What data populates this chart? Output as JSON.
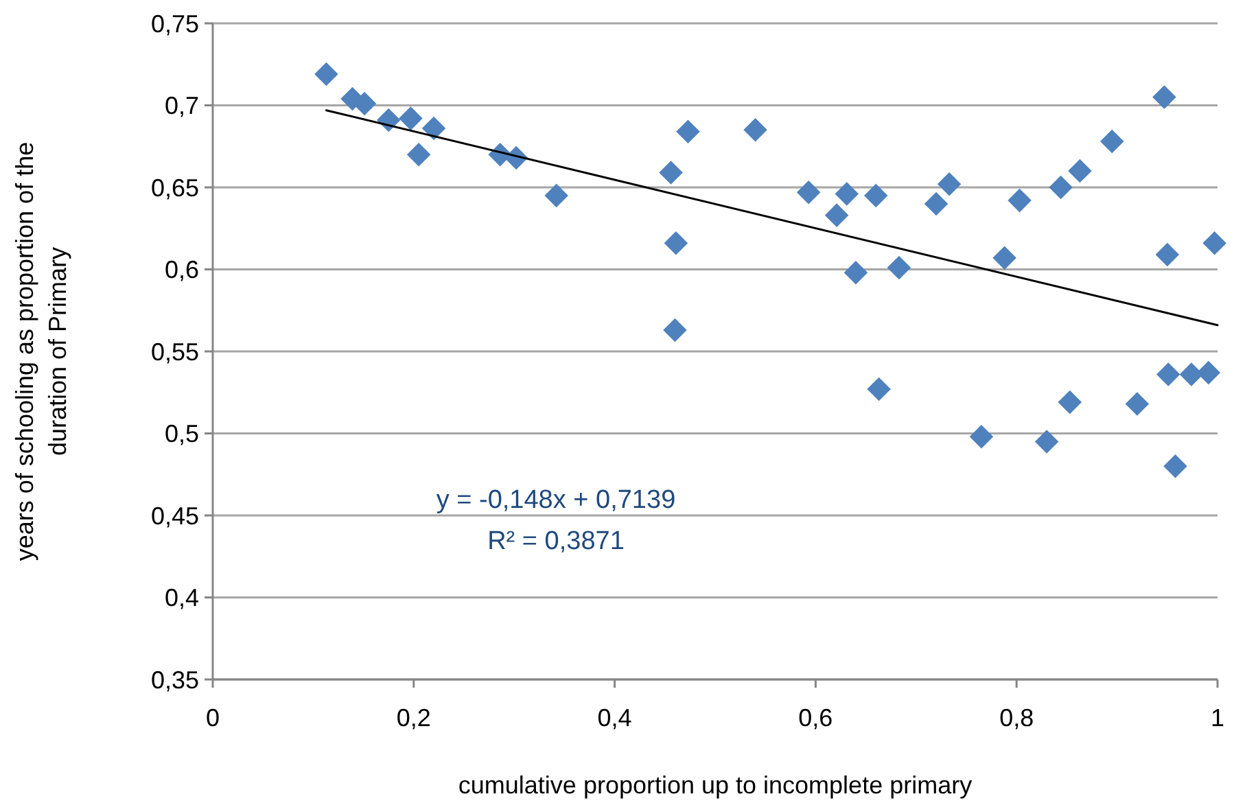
{
  "chart_data": {
    "type": "scatter",
    "xlabel": "cumulative proportion up to incomplete primary",
    "ylabel": "years of schooling as proportion of the\nduration of Primary",
    "xlim": [
      0,
      1
    ],
    "xticks": [
      0,
      {
        "value": 0.2,
        "label": "0,2"
      },
      {
        "value": 0.4,
        "label": "0,4"
      },
      {
        "value": 0.6,
        "label": "0,6"
      },
      {
        "value": 0.8,
        "label": "0,8"
      },
      1
    ],
    "ylim": [
      0.35,
      0.75
    ],
    "yticks": [
      {
        "value": 0.35,
        "label": "0,35"
      },
      {
        "value": 0.4,
        "label": "0,4"
      },
      {
        "value": 0.45,
        "label": "0,45"
      },
      {
        "value": 0.5,
        "label": "0,5"
      },
      {
        "value": 0.55,
        "label": "0,55"
      },
      {
        "value": 0.6,
        "label": "0,6"
      },
      {
        "value": 0.65,
        "label": "0,65"
      },
      {
        "value": 0.7,
        "label": "0,7"
      },
      {
        "value": 0.75,
        "label": "0,75"
      }
    ],
    "grid": "y",
    "annotations": [
      "y = -0,148x + 0,7139",
      "R² = 0,3871"
    ],
    "series": [
      {
        "color": "#4f81bd",
        "marker": "diamond",
        "x": [
          0.113,
          0.139,
          0.151,
          0.175,
          0.197,
          0.205,
          0.22,
          0.286,
          0.302,
          0.342,
          0.456,
          0.461,
          0.46,
          0.473,
          0.54,
          0.593,
          0.631,
          0.621,
          0.66,
          0.64,
          0.683,
          0.663,
          0.72,
          0.733,
          0.788,
          0.803,
          0.765,
          0.844,
          0.83,
          0.853,
          0.863,
          0.895,
          0.92,
          0.947,
          0.95,
          0.951,
          0.958,
          0.974,
          0.991,
          0.997
        ],
        "values": [
          0.719,
          0.704,
          0.701,
          0.691,
          0.692,
          0.67,
          0.686,
          0.67,
          0.668,
          0.645,
          0.659,
          0.616,
          0.563,
          0.684,
          0.685,
          0.647,
          0.646,
          0.633,
          0.645,
          0.598,
          0.601,
          0.527,
          0.64,
          0.652,
          0.607,
          0.642,
          0.498,
          0.65,
          0.495,
          0.519,
          0.66,
          0.678,
          0.518,
          0.705,
          0.609,
          0.536,
          0.48,
          0.536,
          0.537,
          0.616
        ]
      },
      {
        "type": "line",
        "color": "#000000",
        "marker": "none",
        "line_style": "solid",
        "x": [
          0.113,
          1
        ],
        "values": [
          0.697,
          0.566
        ]
      }
    ]
  }
}
